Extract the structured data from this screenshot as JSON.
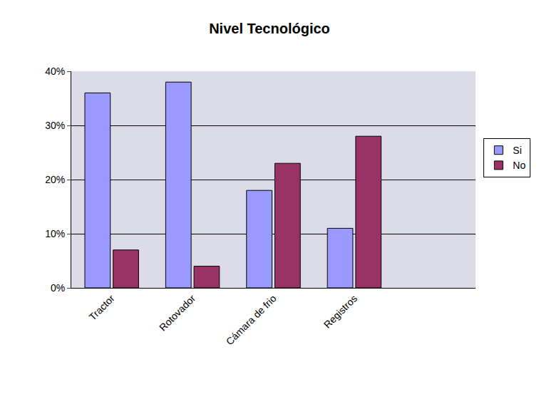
{
  "chart_data": {
    "type": "bar",
    "title": "Nivel Tecnológico",
    "categories": [
      "Tractor",
      "Rotovador",
      "Cámara de frio",
      "Registros",
      null
    ],
    "series": [
      {
        "name": "Si",
        "color": "#9999ff",
        "values": [
          36,
          38,
          18,
          11,
          null
        ]
      },
      {
        "name": "No",
        "color": "#993366",
        "values": [
          7,
          4,
          23,
          28,
          null
        ]
      }
    ],
    "ylim": [
      0,
      40
    ],
    "yticks": [
      {
        "value": 0,
        "label": "0%"
      },
      {
        "value": 10,
        "label": "10%"
      },
      {
        "value": 20,
        "label": "20%"
      },
      {
        "value": 30,
        "label": "30%"
      },
      {
        "value": 40,
        "label": "40%"
      }
    ],
    "grid": true,
    "legend": "right"
  }
}
